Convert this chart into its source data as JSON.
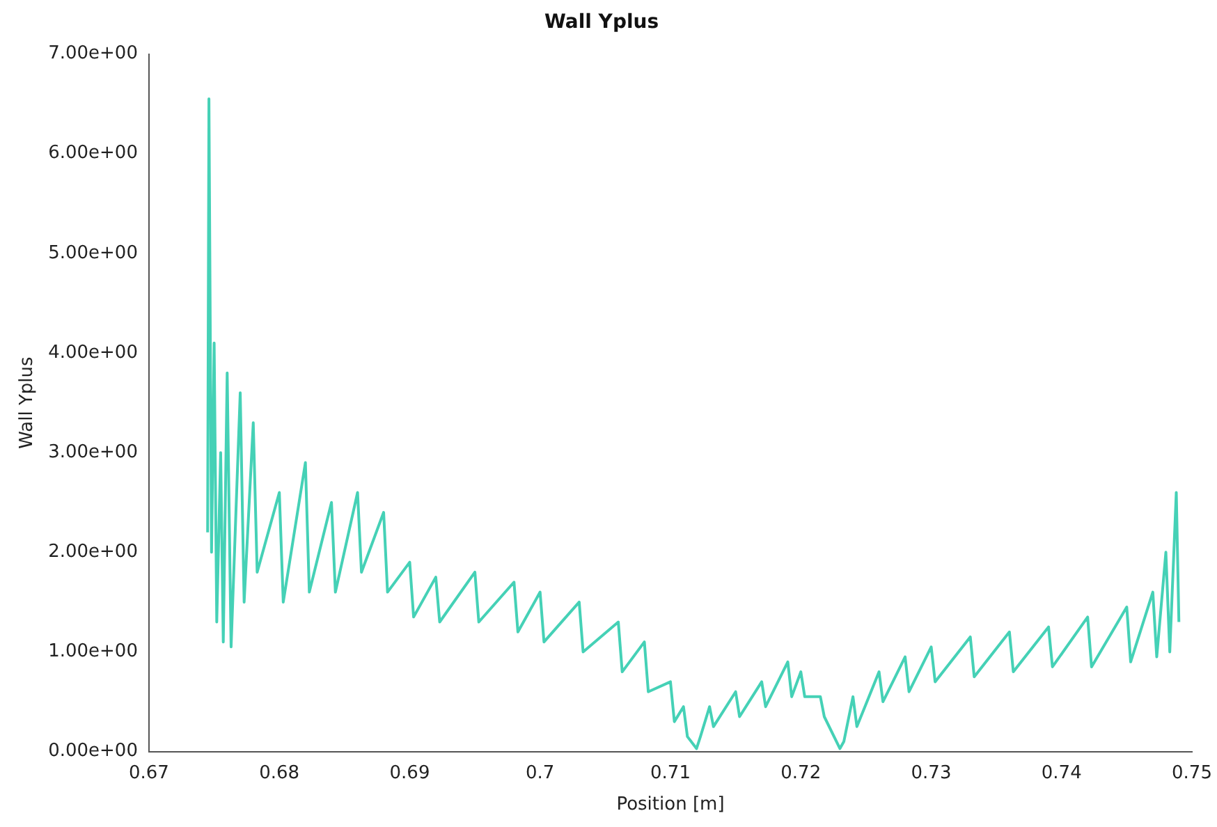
{
  "chart_data": {
    "type": "line",
    "title": "Wall Yplus",
    "xlabel": "Position [m]",
    "ylabel": "Wall Yplus",
    "color": "#45d1b6",
    "marker": "none",
    "grid": false,
    "legend": false,
    "xlim": [
      0.67,
      0.75
    ],
    "xticks": [
      0.67,
      0.68,
      0.69,
      0.7,
      0.71,
      0.72,
      0.73,
      0.74,
      0.75
    ],
    "ylim": [
      0,
      7
    ],
    "yticks": [
      {
        "value": 0,
        "label": "0.00e+00"
      },
      {
        "value": 1,
        "label": "1.00e+00"
      },
      {
        "value": 2,
        "label": "2.00e+00"
      },
      {
        "value": 3,
        "label": "3.00e+00"
      },
      {
        "value": 4,
        "label": "4.00e+00"
      },
      {
        "value": 5,
        "label": "5.00e+00"
      },
      {
        "value": 6,
        "label": "6.00e+00"
      },
      {
        "value": 7,
        "label": "7.00e+00"
      }
    ],
    "x": [
      0.6745,
      0.6746,
      0.6748,
      0.675,
      0.6752,
      0.6755,
      0.6757,
      0.676,
      0.6763,
      0.677,
      0.6773,
      0.678,
      0.6783,
      0.68,
      0.6803,
      0.682,
      0.6823,
      0.684,
      0.6843,
      0.686,
      0.6863,
      0.688,
      0.6883,
      0.69,
      0.6903,
      0.692,
      0.6923,
      0.695,
      0.6953,
      0.698,
      0.6983,
      0.7,
      0.7003,
      0.703,
      0.7033,
      0.706,
      0.7063,
      0.708,
      0.7083,
      0.71,
      0.7103,
      0.711,
      0.7113,
      0.712,
      0.7123,
      0.713,
      0.7133,
      0.715,
      0.7153,
      0.717,
      0.7173,
      0.719,
      0.7193,
      0.72,
      0.7203,
      0.7215,
      0.7218,
      0.723,
      0.7233,
      0.724,
      0.7243,
      0.726,
      0.7263,
      0.728,
      0.7283,
      0.73,
      0.7303,
      0.733,
      0.7333,
      0.736,
      0.7363,
      0.739,
      0.7393,
      0.742,
      0.7423,
      0.745,
      0.7453,
      0.747,
      0.7473,
      0.748,
      0.7483,
      0.7488,
      0.749
    ],
    "values": [
      2.2,
      6.55,
      2.0,
      4.1,
      1.3,
      3.0,
      1.1,
      3.8,
      1.05,
      3.6,
      1.5,
      3.3,
      1.8,
      2.6,
      1.5,
      2.9,
      1.6,
      2.5,
      1.6,
      2.6,
      1.8,
      2.4,
      1.6,
      1.9,
      1.35,
      1.75,
      1.3,
      1.8,
      1.3,
      1.7,
      1.2,
      1.6,
      1.1,
      1.5,
      1.0,
      1.3,
      0.8,
      1.1,
      0.6,
      0.7,
      0.3,
      0.45,
      0.15,
      0.03,
      0.15,
      0.45,
      0.25,
      0.6,
      0.35,
      0.7,
      0.45,
      0.9,
      0.55,
      0.8,
      0.55,
      0.55,
      0.35,
      0.03,
      0.1,
      0.55,
      0.25,
      0.8,
      0.5,
      0.95,
      0.6,
      1.05,
      0.7,
      1.15,
      0.75,
      1.2,
      0.8,
      1.25,
      0.85,
      1.35,
      0.85,
      1.45,
      0.9,
      1.6,
      0.95,
      2.0,
      1.0,
      2.6,
      1.3
    ]
  }
}
